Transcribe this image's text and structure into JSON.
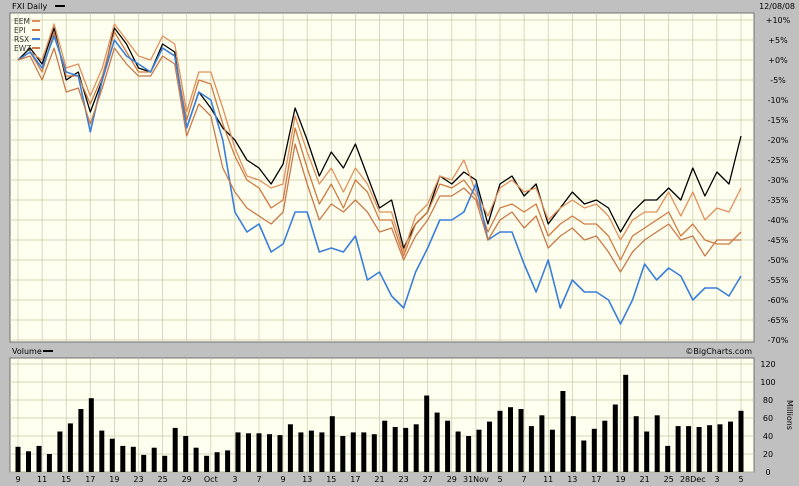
{
  "header": {
    "price_title": "FXI Daily",
    "date": "12/08/08",
    "volume_title": "Volume",
    "watermark": "©BigCharts.com",
    "volume_units": "Millions"
  },
  "colors": {
    "background": "#c0c0c0",
    "plot_background": "#fffff0",
    "grid": "#c8c8a8",
    "FXI": "#000000",
    "EEM": "#e0905a",
    "EPI": "#d07a40",
    "RSX": "#3a7fd8",
    "EWZ": "#c87a4a",
    "volume_bars": "#000000"
  },
  "chart_data": [
    {
      "type": "line",
      "title": "FXI Daily",
      "y_unit": "percent change",
      "ylim": [
        -70,
        10
      ],
      "yticks": [
        10,
        5,
        0,
        -5,
        -10,
        -15,
        -20,
        -25,
        -30,
        -35,
        -40,
        -45,
        -50,
        -55,
        -60,
        -65,
        -70
      ],
      "ytick_labels": [
        "+10%",
        "+5%",
        "+0%",
        "-5%",
        "-10%",
        "-15%",
        "-20%",
        "-25%",
        "-30%",
        "-35%",
        "-40%",
        "-45%",
        "-50%",
        "-55%",
        "-60%",
        "-65%",
        "-70%"
      ],
      "grid": true,
      "legend_placement": "top-left",
      "legend": [
        "EEM",
        "EPI",
        "RSX",
        "EWZ"
      ],
      "x_labels": [
        "9",
        "11",
        "15",
        "17",
        "19",
        "23",
        "25",
        "29",
        "Oct",
        "3",
        "7",
        "9",
        "13",
        "15",
        "17",
        "21",
        "23",
        "27",
        "29",
        "31Nov",
        "5",
        "7",
        "11",
        "13",
        "17",
        "19",
        "21",
        "25",
        "28Dec",
        "3",
        "5"
      ],
      "label_days": [
        0,
        2,
        4,
        6,
        8,
        10,
        12,
        14,
        16,
        18,
        20,
        22,
        24,
        26,
        28,
        30,
        32,
        34,
        36,
        38,
        40,
        42,
        44,
        46,
        48,
        50,
        52,
        54,
        56,
        58,
        60
      ],
      "series": [
        {
          "name": "FXI",
          "color": "#000000",
          "values": [
            0,
            3,
            -1,
            8,
            -5,
            -3,
            -13,
            -5,
            8,
            4,
            -2,
            -3,
            4,
            2,
            -17,
            -8,
            -12,
            -17,
            -20,
            -25,
            -27,
            -31,
            -26,
            -12,
            -20,
            -29,
            -23,
            -27,
            -21,
            -29,
            -37,
            -35,
            -47,
            -41,
            -38,
            -29,
            -31,
            -28,
            -30,
            -41,
            -31,
            -29,
            -34,
            -31,
            -41,
            -37,
            -33,
            -36,
            -35,
            -37,
            -43,
            -38,
            -35,
            -35,
            -32,
            -35,
            -27,
            -34,
            -28,
            -31,
            -19
          ]
        },
        {
          "name": "EEM",
          "color": "#e0905a",
          "values": [
            0,
            2,
            0,
            9,
            -2,
            -1,
            -9,
            -2,
            9,
            5,
            1,
            0,
            6,
            4,
            -13,
            -3,
            -3,
            -12,
            -22,
            -29,
            -30,
            -32,
            -31,
            -14,
            -23,
            -31,
            -27,
            -33,
            -27,
            -31,
            -38,
            -38,
            -48,
            -39,
            -36,
            -29,
            -30,
            -25,
            -33,
            -39,
            -32,
            -30,
            -33,
            -32,
            -40,
            -37,
            -35,
            -37,
            -36,
            -39,
            -45,
            -40,
            -38,
            -38,
            -33,
            -39,
            -33,
            -40,
            -37,
            -38,
            -32
          ]
        },
        {
          "name": "EPI",
          "color": "#d07a40",
          "values": [
            0,
            2,
            -3,
            7,
            -4,
            -4,
            -11,
            -4,
            7,
            2,
            -3,
            -3,
            3,
            1,
            -15,
            -5,
            -6,
            -16,
            -24,
            -30,
            -32,
            -37,
            -35,
            -17,
            -27,
            -36,
            -31,
            -37,
            -30,
            -33,
            -40,
            -40,
            -49,
            -41,
            -38,
            -31,
            -32,
            -30,
            -34,
            -43,
            -37,
            -36,
            -38,
            -36,
            -44,
            -41,
            -39,
            -41,
            -41,
            -44,
            -50,
            -44,
            -42,
            -40,
            -38,
            -44,
            -41,
            -45,
            -46,
            -46,
            -43
          ]
        },
        {
          "name": "RSX",
          "color": "#3a7fd8",
          "values": [
            0,
            2,
            -2,
            6,
            -3,
            -4,
            -18,
            -5,
            5,
            1,
            -1,
            -3,
            3,
            1,
            -17,
            -8,
            -10,
            -20,
            -38,
            -43,
            -41,
            -48,
            -46,
            -38,
            -38,
            -48,
            -47,
            -48,
            -44,
            -55,
            -53,
            -59,
            -62,
            -53,
            -47,
            -40,
            -40,
            -38,
            -31,
            -45,
            -43,
            -43,
            -51,
            -58,
            -50,
            -62,
            -55,
            -58,
            -58,
            -60,
            -66,
            -60,
            -51,
            -55,
            -52,
            -54,
            -60,
            -57,
            -57,
            -59,
            -54
          ]
        },
        {
          "name": "EWZ",
          "color": "#c87a4a",
          "values": [
            0,
            1,
            -5,
            3,
            -8,
            -7,
            -16,
            -7,
            3,
            -1,
            -4,
            -4,
            1,
            -1,
            -19,
            -11,
            -14,
            -27,
            -33,
            -37,
            -39,
            -41,
            -38,
            -21,
            -31,
            -40,
            -36,
            -38,
            -35,
            -38,
            -43,
            -42,
            -50,
            -44,
            -40,
            -34,
            -34,
            -32,
            -35,
            -45,
            -40,
            -38,
            -42,
            -39,
            -47,
            -44,
            -42,
            -45,
            -44,
            -48,
            -53,
            -48,
            -45,
            -43,
            -41,
            -45,
            -44,
            -49,
            -45,
            -45,
            -45
          ]
        }
      ]
    },
    {
      "type": "bar",
      "title": "Volume",
      "y_unit": "Millions",
      "ylim": [
        0,
        120
      ],
      "yticks": [
        0,
        20,
        40,
        60,
        80,
        100,
        120
      ],
      "ytick_labels": [
        "0",
        "20",
        "40",
        "60",
        "80",
        "100",
        "120"
      ],
      "values": [
        28,
        23,
        29,
        20,
        45,
        54,
        70,
        82,
        46,
        37,
        29,
        28,
        19,
        27,
        18,
        49,
        40,
        27,
        18,
        22,
        24,
        44,
        43,
        43,
        42,
        41,
        53,
        44,
        46,
        44,
        62,
        40,
        44,
        44,
        42,
        57,
        50,
        49,
        53,
        85,
        66,
        57,
        45,
        40,
        47,
        56,
        68,
        72,
        70,
        51,
        63,
        47,
        90,
        62,
        35,
        48,
        57,
        75,
        108,
        62,
        45,
        63,
        29,
        51,
        51,
        50,
        52,
        53,
        56,
        68
      ]
    }
  ]
}
